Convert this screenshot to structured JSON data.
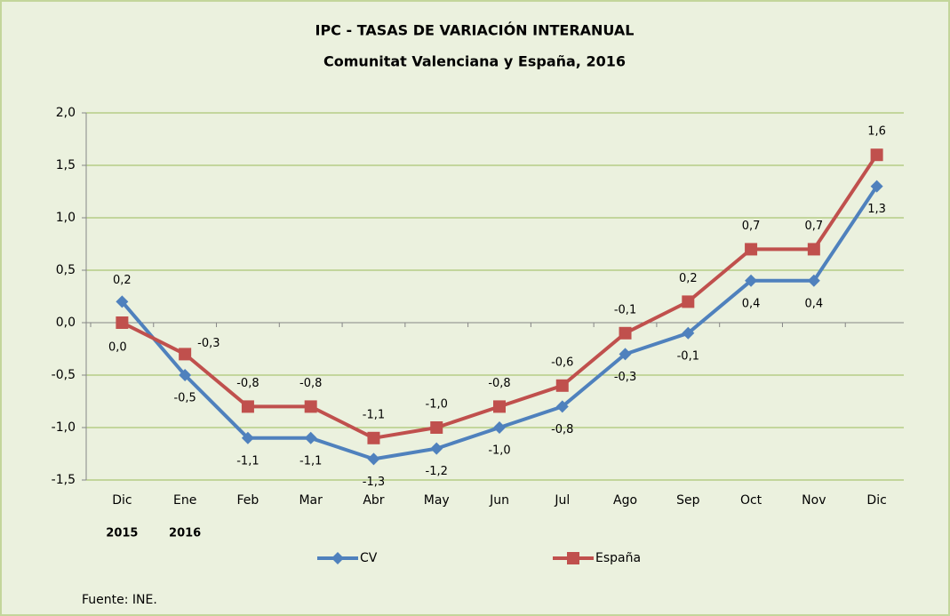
{
  "chart_data": {
    "type": "line",
    "title": "IPC - TASAS DE VARIACIÓN INTERANUAL",
    "subtitle": "Comunitat Valenciana y España, 2016",
    "categories": [
      "Dic",
      "Ene",
      "Feb",
      "Mar",
      "Abr",
      "May",
      "Jun",
      "Jul",
      "Ago",
      "Sep",
      "Oct",
      "Nov",
      "Dic"
    ],
    "year_labels": [
      "2015",
      "2016"
    ],
    "series": [
      {
        "name": "CV",
        "color": "#4f81bd",
        "marker": "diamond",
        "values": [
          0.2,
          -0.5,
          -1.1,
          -1.1,
          -1.3,
          -1.2,
          -1.0,
          -0.8,
          -0.3,
          -0.1,
          0.4,
          0.4,
          1.3
        ],
        "value_labels": [
          "0,2",
          "-0,5",
          "-1,1",
          "-1,1",
          "-1,3",
          "-1,2",
          "-1,0",
          "-0,8",
          "-0,3",
          "-0,1",
          "0,4",
          "0,4",
          "1,3"
        ]
      },
      {
        "name": "España",
        "color": "#c0504d",
        "marker": "square",
        "values": [
          0.0,
          -0.3,
          -0.8,
          -0.8,
          -1.1,
          -1.0,
          -0.8,
          -0.6,
          -0.1,
          0.2,
          0.7,
          0.7,
          1.6
        ],
        "value_labels": [
          "0,0",
          "-0,3",
          "-0,8",
          "-0,8",
          "-1,1",
          "-1,0",
          "-0,8",
          "-0,6",
          "-0,1",
          "0,2",
          "0,7",
          "0,7",
          "1,6"
        ]
      }
    ],
    "ylim": [
      -1.5,
      2.0
    ],
    "yticks": [
      {
        "value": -1.5,
        "label": "-1,5"
      },
      {
        "value": -1.0,
        "label": "-1,0"
      },
      {
        "value": -0.5,
        "label": "-0,5"
      },
      {
        "value": 0.0,
        "label": "0,0"
      },
      {
        "value": 0.5,
        "label": "0,5"
      },
      {
        "value": 1.0,
        "label": "1,0"
      },
      {
        "value": 1.5,
        "label": "1,5"
      },
      {
        "value": 2.0,
        "label": "2,0"
      }
    ],
    "grid": true,
    "legend": "bottom",
    "source": "Fuente: INE."
  }
}
